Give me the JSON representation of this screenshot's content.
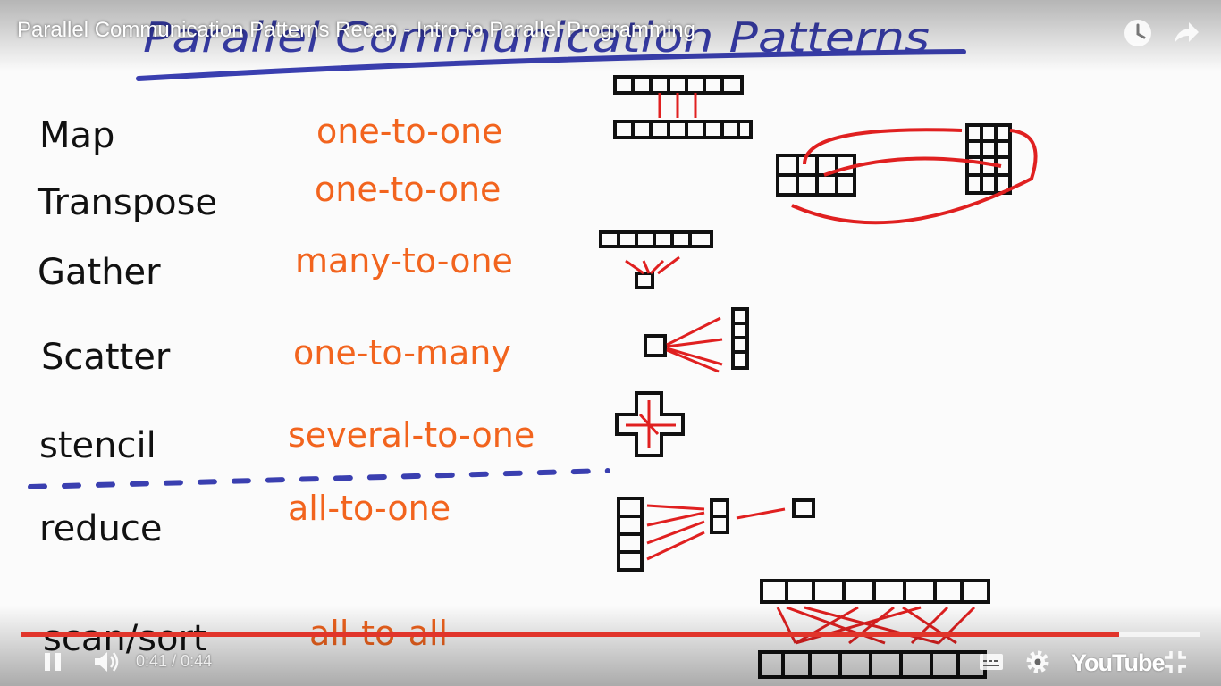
{
  "video": {
    "title": "Parallel Communication Patterns Recap - Intro to Parallel Programming",
    "current_time": "0:41",
    "time_separator": "/",
    "duration": "0:44",
    "played_fraction": 0.9318,
    "loaded_fraction": 1.0
  },
  "slide": {
    "heading": "Parallel Communication Patterns",
    "rows": [
      {
        "pattern": "Map",
        "relation": "one-to-one"
      },
      {
        "pattern": "Transpose",
        "relation": "one-to-one"
      },
      {
        "pattern": "Gather",
        "relation": "many-to-one"
      },
      {
        "pattern": "Scatter",
        "relation": "one-to-many"
      },
      {
        "pattern": "stencil",
        "relation": "several-to-one"
      },
      {
        "pattern": "reduce",
        "relation": "all-to-one"
      },
      {
        "pattern": "scan/sort",
        "relation": "all-to-all"
      }
    ]
  },
  "controls": {
    "logo": "YouTube"
  },
  "icons": {
    "watch_later": "clock-icon",
    "share": "share-arrow-icon",
    "pause": "pause-icon",
    "volume": "volume-icon",
    "subtitles": "subtitles-icon",
    "settings": "gear-icon",
    "exit_fullscreen": "exit-fullscreen-icon"
  },
  "colors": {
    "pattern_text": "#111111",
    "relation_text": "#f2641e",
    "heading": "#3a3fb0",
    "arrows": "#e02020",
    "progress_played": "#e1352b"
  }
}
